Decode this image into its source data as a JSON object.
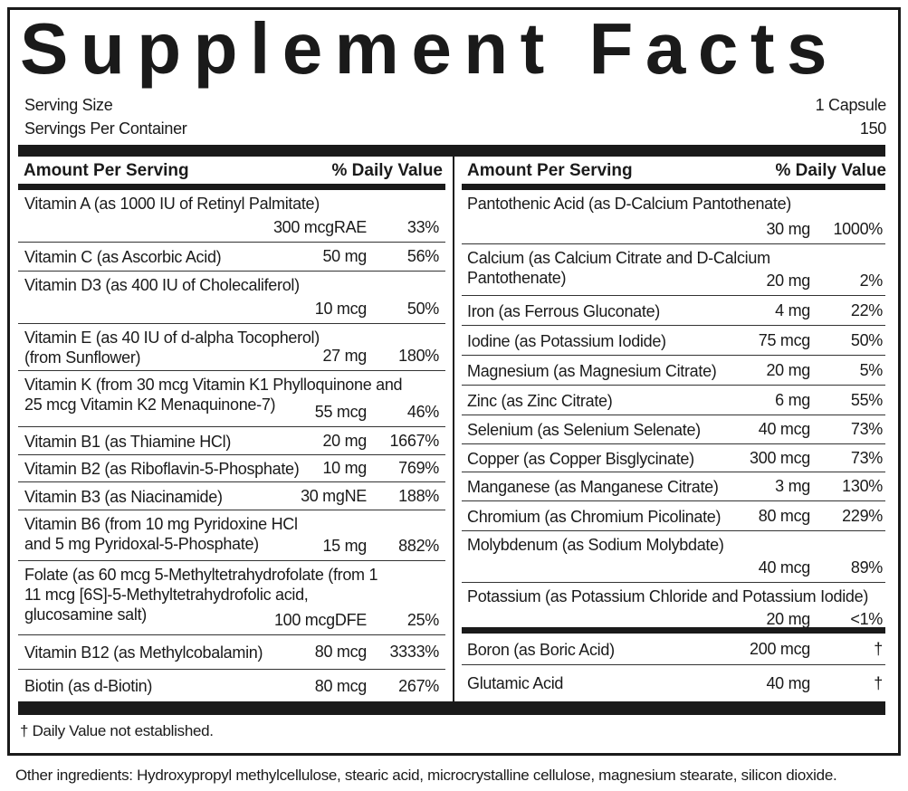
{
  "title": "Supplement Facts",
  "serving": {
    "size_label": "Serving Size",
    "size": "1 Capsule",
    "per_container_label": "Servings Per Container",
    "per_container": "150"
  },
  "columns": [
    {
      "headers": [
        "Amount Per Serving",
        "% Daily Value"
      ],
      "rows": [
        {
          "name": [
            "Vitamin A (as 1000 IU of Retinyl Palmitate)"
          ],
          "amount": "300 mcgRAE",
          "dv": "33%"
        },
        {
          "name": [
            "Vitamin C (as Ascorbic Acid)"
          ],
          "amount": "50 mg",
          "dv": "56%"
        },
        {
          "name": [
            "Vitamin D3 (as 400 IU of Cholecaliferol)"
          ],
          "amount": "10 mcg",
          "dv": "50%"
        },
        {
          "name": [
            "Vitamin E (as 40 IU of d-alpha Tocopherol)",
            "(from Sunflower)"
          ],
          "amount": "27 mg",
          "dv": "180%"
        },
        {
          "name": [
            "Vitamin K (from 30 mcg Vitamin K1 Phylloquinone and",
            "25 mcg Vitamin K2 Menaquinone-7)"
          ],
          "amount": "55 mcg",
          "dv": "46%"
        },
        {
          "name": [
            "Vitamin B1 (as Thiamine HCl)"
          ],
          "amount": "20 mg",
          "dv": "1667%"
        },
        {
          "name": [
            "Vitamin B2 (as Riboflavin-5-Phosphate)"
          ],
          "amount": "10 mg",
          "dv": "769%"
        },
        {
          "name": [
            "Vitamin B3 (as Niacinamide)"
          ],
          "amount": "30 mgNE",
          "dv": "188%"
        },
        {
          "name": [
            "Vitamin B6 (from 10 mg Pyridoxine HCl",
            "and 5 mg Pyridoxal-5-Phosphate)"
          ],
          "amount": "15 mg",
          "dv": "882%"
        },
        {
          "name": [
            "Folate (as 60 mcg 5-Methyltetrahydrofolate (from 1",
            "11 mcg [6S]-5-Methyltetrahydrofolic acid,",
            "glucosamine salt)"
          ],
          "amount": "100 mcgDFE",
          "dv": "25%"
        },
        {
          "name": [
            "Vitamin B12 (as Methylcobalamin)"
          ],
          "amount": "80 mcg",
          "dv": "3333%"
        },
        {
          "name": [
            "Biotin (as d-Biotin)"
          ],
          "amount": "80 mcg",
          "dv": "267%"
        }
      ]
    },
    {
      "headers": [
        "Amount Per Serving",
        "% Daily Value"
      ],
      "rows": [
        {
          "name": [
            "Pantothenic Acid (as D-Calcium Pantothenate)"
          ],
          "amount": "30 mg",
          "dv": "1000%"
        },
        {
          "name": [
            "Calcium (as Calcium Citrate and D-Calcium",
            "Pantothenate)"
          ],
          "amount": "20 mg",
          "dv": "2%"
        },
        {
          "name": [
            "Iron (as Ferrous Gluconate)"
          ],
          "amount": "4 mg",
          "dv": "22%"
        },
        {
          "name": [
            "Iodine (as Potassium Iodide)"
          ],
          "amount": "75 mcg",
          "dv": "50%"
        },
        {
          "name": [
            "Magnesium (as Magnesium Citrate)"
          ],
          "amount": "20 mg",
          "dv": "5%"
        },
        {
          "name": [
            "Zinc (as Zinc Citrate)"
          ],
          "amount": "6 mg",
          "dv": "55%"
        },
        {
          "name": [
            "Selenium (as Selenium Selenate)"
          ],
          "amount": "40 mcg",
          "dv": "73%"
        },
        {
          "name": [
            "Copper (as Copper Bisglycinate)"
          ],
          "amount": "300 mcg",
          "dv": "73%"
        },
        {
          "name": [
            "Manganese (as Manganese Citrate)"
          ],
          "amount": "3 mg",
          "dv": "130%"
        },
        {
          "name": [
            "Chromium (as Chromium Picolinate)"
          ],
          "amount": "80 mcg",
          "dv": "229%"
        },
        {
          "name": [
            "Molybdenum (as Sodium Molybdate)"
          ],
          "amount": "40 mcg",
          "dv": "89%"
        },
        {
          "name": [
            "Potassium (as Potassium Chloride and Potassium Iodide)"
          ],
          "amount": "20 mg",
          "dv": "<1%"
        },
        {
          "name": [
            "Boron (as Boric Acid)"
          ],
          "amount": "200 mcg",
          "dv": "†"
        },
        {
          "name": [
            "Glutamic Acid"
          ],
          "amount": "40 mg",
          "dv": "†"
        }
      ]
    }
  ],
  "footnote": "† Daily Value not established.",
  "other_ingredients": "Other ingredients: Hydroxypropyl methylcellulose, stearic acid, microcrystalline cellulose, magnesium stearate, silicon dioxide."
}
